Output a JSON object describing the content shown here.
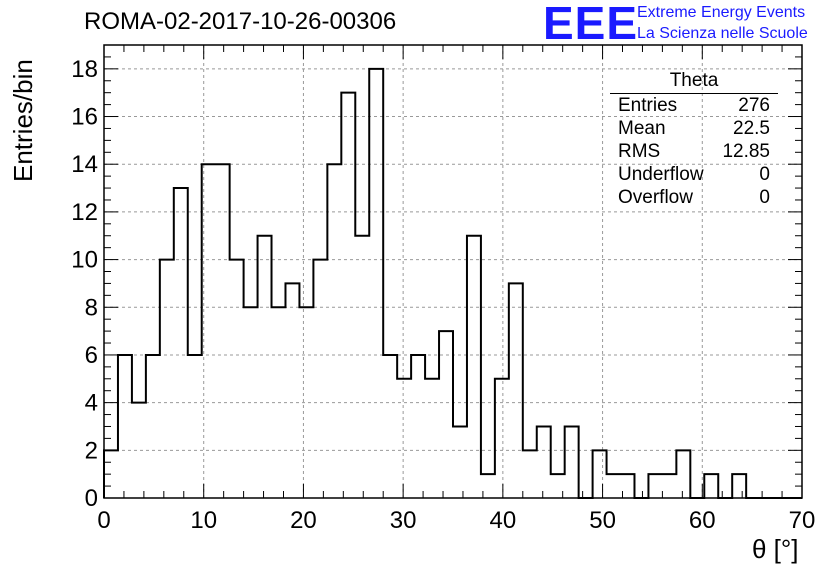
{
  "title": "ROMA-02-2017-10-26-00306",
  "logo": {
    "mark": "EEE",
    "line1": "Extreme Energy Events",
    "line2": "La Scienza nelle Scuole",
    "color": "#1a1aff"
  },
  "stats_box": {
    "title": "Theta",
    "rows": [
      {
        "label": "Entries",
        "value": "276"
      },
      {
        "label": "Mean",
        "value": "22.5"
      },
      {
        "label": "RMS",
        "value": "12.85"
      },
      {
        "label": "Underflow",
        "value": "0"
      },
      {
        "label": "Overflow",
        "value": "0"
      }
    ]
  },
  "chart_data": {
    "type": "bar",
    "style": "step-histogram",
    "xlabel": "θ [°]",
    "ylabel": "Entries/bin",
    "xlim": [
      0,
      70
    ],
    "ylim": [
      0,
      19
    ],
    "grid": true,
    "bin_width": 1.4,
    "x_ticks": [
      0,
      10,
      20,
      30,
      40,
      50,
      60,
      70
    ],
    "y_ticks": [
      0,
      2,
      4,
      6,
      8,
      10,
      12,
      14,
      16,
      18
    ],
    "values": [
      2,
      6,
      4,
      6,
      10,
      13,
      6,
      14,
      14,
      10,
      8,
      11,
      8,
      9,
      8,
      10,
      14,
      17,
      11,
      18,
      6,
      5,
      6,
      5,
      7,
      3,
      11,
      1,
      5,
      9,
      2,
      3,
      1,
      3,
      0,
      2,
      1,
      1,
      0,
      1,
      1,
      2,
      0,
      1,
      0,
      1,
      0,
      0,
      0,
      0
    ]
  }
}
